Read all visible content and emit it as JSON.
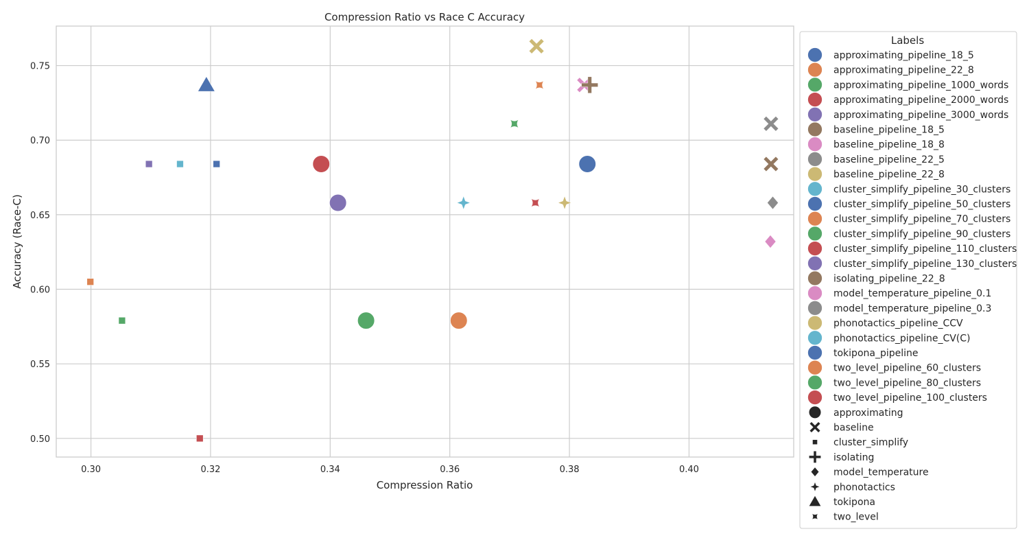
{
  "chart_data": {
    "type": "scatter",
    "title": "Compression Ratio vs Race C Accuracy",
    "xlabel": "Compression Ratio",
    "ylabel": "Accuracy (Race-C)",
    "xlim": [
      0.2942,
      0.4175
    ],
    "ylim": [
      0.4875,
      0.7765
    ],
    "xticks": [
      0.3,
      0.32,
      0.34,
      0.36,
      0.38,
      0.4
    ],
    "xtick_labels": [
      "0.30",
      "0.32",
      "0.34",
      "0.36",
      "0.38",
      "0.40"
    ],
    "yticks": [
      0.5,
      0.55,
      0.6,
      0.65,
      0.7,
      0.75
    ],
    "ytick_labels": [
      "0.50",
      "0.55",
      "0.60",
      "0.65",
      "0.70",
      "0.75"
    ],
    "grid": true,
    "legend_title": "Labels",
    "legend_placement": "outside-right",
    "series": [
      {
        "name": "approximating_pipeline_18_5",
        "color": "#4c72b0",
        "marker": "circle",
        "points": []
      },
      {
        "name": "approximating_pipeline_22_8",
        "color": "#dd8452",
        "marker": "circle",
        "points": [
          [
            0.3615,
            0.579
          ]
        ]
      },
      {
        "name": "approximating_pipeline_1000_words",
        "color": "#55a868",
        "marker": "circle",
        "points": [
          [
            0.346,
            0.579
          ]
        ]
      },
      {
        "name": "approximating_pipeline_2000_words",
        "color": "#c44e52",
        "marker": "circle",
        "points": [
          [
            0.3385,
            0.684
          ]
        ]
      },
      {
        "name": "approximating_pipeline_3000_words",
        "color": "#8172b3",
        "marker": "circle",
        "points": [
          [
            0.3413,
            0.658
          ]
        ]
      },
      {
        "name": "baseline_pipeline_18_5",
        "color": "#937860",
        "marker": "x",
        "points": [
          [
            0.4137,
            0.684
          ]
        ]
      },
      {
        "name": "baseline_pipeline_18_8",
        "color": "#da8bc3",
        "marker": "x",
        "points": [
          [
            0.3825,
            0.737
          ]
        ]
      },
      {
        "name": "baseline_pipeline_22_5",
        "color": "#8c8c8c",
        "marker": "x",
        "points": [
          [
            0.4137,
            0.711
          ]
        ]
      },
      {
        "name": "baseline_pipeline_22_8",
        "color": "#ccb974",
        "marker": "x",
        "points": [
          [
            0.3745,
            0.763
          ]
        ]
      },
      {
        "name": "cluster_simplify_pipeline_30_clusters",
        "color": "#64b5cd",
        "marker": "square",
        "points": [
          [
            0.3149,
            0.684
          ]
        ]
      },
      {
        "name": "cluster_simplify_pipeline_50_clusters",
        "color": "#4c72b0",
        "marker": "square",
        "points": [
          [
            0.321,
            0.684
          ]
        ]
      },
      {
        "name": "cluster_simplify_pipeline_70_clusters",
        "color": "#dd8452",
        "marker": "square",
        "points": [
          [
            0.2999,
            0.605
          ]
        ]
      },
      {
        "name": "cluster_simplify_pipeline_90_clusters",
        "color": "#55a868",
        "marker": "square",
        "points": [
          [
            0.3052,
            0.579
          ]
        ]
      },
      {
        "name": "cluster_simplify_pipeline_110_clusters",
        "color": "#c44e52",
        "marker": "square",
        "points": [
          [
            0.3182,
            0.5
          ]
        ]
      },
      {
        "name": "cluster_simplify_pipeline_130_clusters",
        "color": "#8172b3",
        "marker": "square",
        "points": [
          [
            0.3097,
            0.684
          ]
        ]
      },
      {
        "name": "isolating_pipeline_22_8",
        "color": "#937860",
        "marker": "plus",
        "points": [
          [
            0.3834,
            0.737
          ]
        ]
      },
      {
        "name": "model_temperature_pipeline_0.1",
        "color": "#da8bc3",
        "marker": "diamond",
        "points": [
          [
            0.4136,
            0.632
          ]
        ]
      },
      {
        "name": "model_temperature_pipeline_0.3",
        "color": "#8c8c8c",
        "marker": "diamond",
        "points": [
          [
            0.414,
            0.658
          ]
        ]
      },
      {
        "name": "phonotactics_pipeline_CCV",
        "color": "#ccb974",
        "marker": "star",
        "points": [
          [
            0.3792,
            0.658
          ]
        ]
      },
      {
        "name": "phonotactics_pipeline_CV(C)",
        "color": "#64b5cd",
        "marker": "star",
        "points": [
          [
            0.3623,
            0.658
          ]
        ]
      },
      {
        "name": "tokipona_pipeline",
        "color": "#4c72b0",
        "marker": "triangle",
        "points": [
          [
            0.3193,
            0.737
          ]
        ]
      },
      {
        "name": "two_level_pipeline_60_clusters",
        "color": "#dd8452",
        "marker": "twolevel",
        "points": [
          [
            0.375,
            0.737
          ]
        ]
      },
      {
        "name": "two_level_pipeline_80_clusters",
        "color": "#55a868",
        "marker": "twolevel",
        "points": [
          [
            0.3708,
            0.711
          ]
        ]
      },
      {
        "name": "two_level_pipeline_100_clusters",
        "color": "#c44e52",
        "marker": "twolevel",
        "points": [
          [
            0.3743,
            0.658
          ]
        ]
      },
      {
        "name": "",
        "color": "#4c72b0",
        "marker": "circle",
        "note": "",
        "points": [
          [
            0.383,
            0.684
          ]
        ]
      }
    ],
    "marker_legend": [
      {
        "name": "approximating",
        "marker": "circle"
      },
      {
        "name": "baseline",
        "marker": "x"
      },
      {
        "name": "cluster_simplify",
        "marker": "square"
      },
      {
        "name": "isolating",
        "marker": "plus"
      },
      {
        "name": "model_temperature",
        "marker": "diamond"
      },
      {
        "name": "phonotactics",
        "marker": "star"
      },
      {
        "name": "tokipona",
        "marker": "triangle"
      },
      {
        "name": "two_level",
        "marker": "twolevel"
      }
    ]
  }
}
